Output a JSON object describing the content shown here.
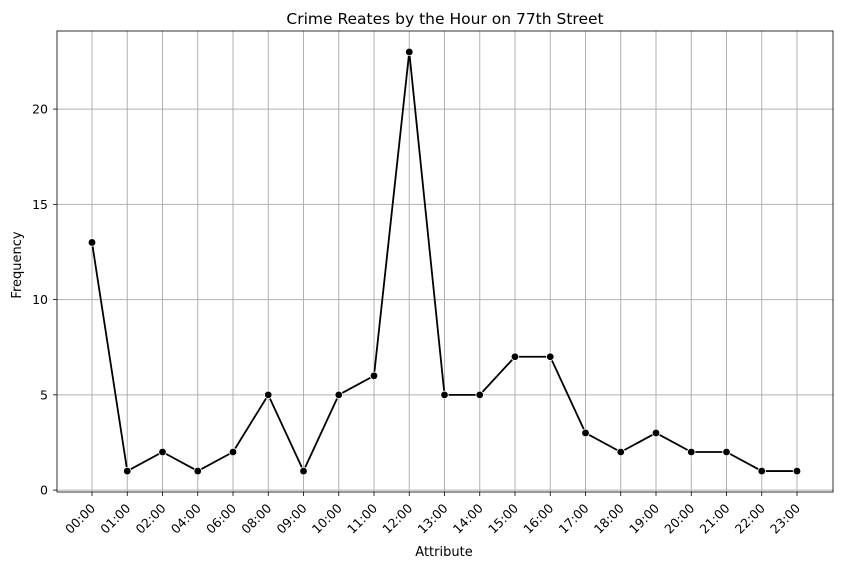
{
  "chart_data": {
    "type": "line",
    "title": "Crime Reates by the Hour on 77th Street",
    "xlabel": "Attribute",
    "ylabel": "Frequency",
    "categories": [
      "00:00",
      "01:00",
      "02:00",
      "04:00",
      "06:00",
      "08:00",
      "09:00",
      "10:00",
      "11:00",
      "12:00",
      "13:00",
      "14:00",
      "15:00",
      "16:00",
      "17:00",
      "18:00",
      "19:00",
      "20:00",
      "21:00",
      "22:00",
      "23:00"
    ],
    "values": [
      13,
      1,
      2,
      1,
      2,
      5,
      1,
      5,
      6,
      23,
      5,
      5,
      7,
      7,
      3,
      2,
      3,
      2,
      2,
      1,
      1
    ],
    "ylim": [
      -0.1,
      24.1
    ],
    "yticks": [
      "0",
      "5",
      "10",
      "15",
      "20"
    ],
    "grid": true,
    "line_color": "#000000",
    "grid_color": "#b0b0b0",
    "marker": "circle"
  }
}
